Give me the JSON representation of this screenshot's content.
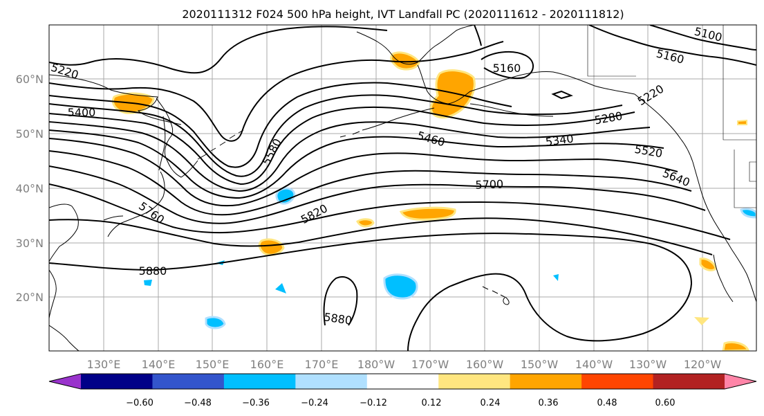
{
  "title": "2020111312 F024 500 hPa height, IVT Landfall PC (2020111612 - 2020111812)",
  "map": {
    "lat_labels": [
      "60°N",
      "50°N",
      "40°N",
      "30°N",
      "20°N"
    ],
    "lon_labels": [
      "130°E",
      "140°E",
      "150°E",
      "160°E",
      "170°E",
      "180°W",
      "170°W",
      "160°W",
      "150°W",
      "140°W",
      "130°W",
      "120°W"
    ],
    "height_contour_labels": [
      "5220",
      "5400",
      "5580",
      "5460",
      "5340",
      "5280",
      "5220",
      "5520",
      "5640",
      "5700",
      "5760",
      "5820",
      "5880",
      "5880",
      "5160",
      "5160",
      "5100"
    ],
    "contour_color": "#000000",
    "grid_color": "#a9a9a9",
    "tick_label_color": "#7f7f7f"
  },
  "colorbar": {
    "tick_labels": [
      "−0.60",
      "−0.48",
      "−0.36",
      "−0.24",
      "−0.12",
      "0.12",
      "0.24",
      "0.36",
      "0.48",
      "0.60"
    ],
    "colors": [
      "#9933cc",
      "#000088",
      "#3355cc",
      "#00bfff",
      "#b0e0ff",
      "#ffffff",
      "#ffe680",
      "#ffa500",
      "#ff4500",
      "#b22222",
      "#ff85a8"
    ]
  }
}
